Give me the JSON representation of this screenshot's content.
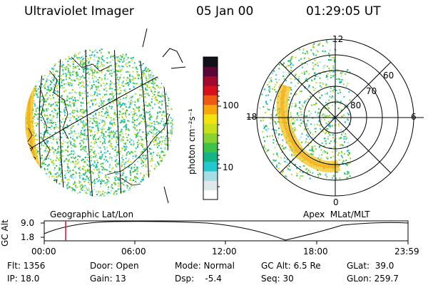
{
  "header": {
    "title": "Ultraviolet Imager",
    "date": "05 Jan 00",
    "time": "01:29:05 UT"
  },
  "colorbar": {
    "unit_label": "photon cm⁻²s⁻¹",
    "ticks": [
      "100",
      "10"
    ],
    "colors": [
      "#ffffff",
      "#dfe8ea",
      "#a5dde4",
      "#22c8d0",
      "#14b48a",
      "#3ec24a",
      "#8ad232",
      "#c8e01c",
      "#f2e20e",
      "#f7a60c",
      "#ee5a16",
      "#d8101e",
      "#a00a2e",
      "#5a0636",
      "#101018"
    ]
  },
  "left_panel": {
    "caption": "Geographic Lat/Lon"
  },
  "right_panel": {
    "caption": "Apex  MLat/MLT",
    "mlt_labels": {
      "top": "12",
      "left": "18",
      "right": "6",
      "bottom": "0"
    },
    "mlat_labels": [
      "60",
      "70",
      "80"
    ]
  },
  "altitude_plot": {
    "ylabel": "GC Alt",
    "yticks": [
      "9.0",
      "1.8"
    ],
    "xticks": [
      "00:00",
      "06:00",
      "12:00",
      "18:00",
      "23:59"
    ],
    "current_time_marker": "01:29"
  },
  "status": {
    "flt": "Flt: 1356",
    "ip": "IP: 18.0",
    "door": "Door: Open",
    "gain": "Gain: 13",
    "mode": "Mode: Normal",
    "dsp": "Dsp:    -5.4",
    "gcalt": "GC Alt: 6.5 Re",
    "seq": "Seq: 30",
    "glat": "GLat:  39.0",
    "glon": "GLon: 259.7"
  }
}
